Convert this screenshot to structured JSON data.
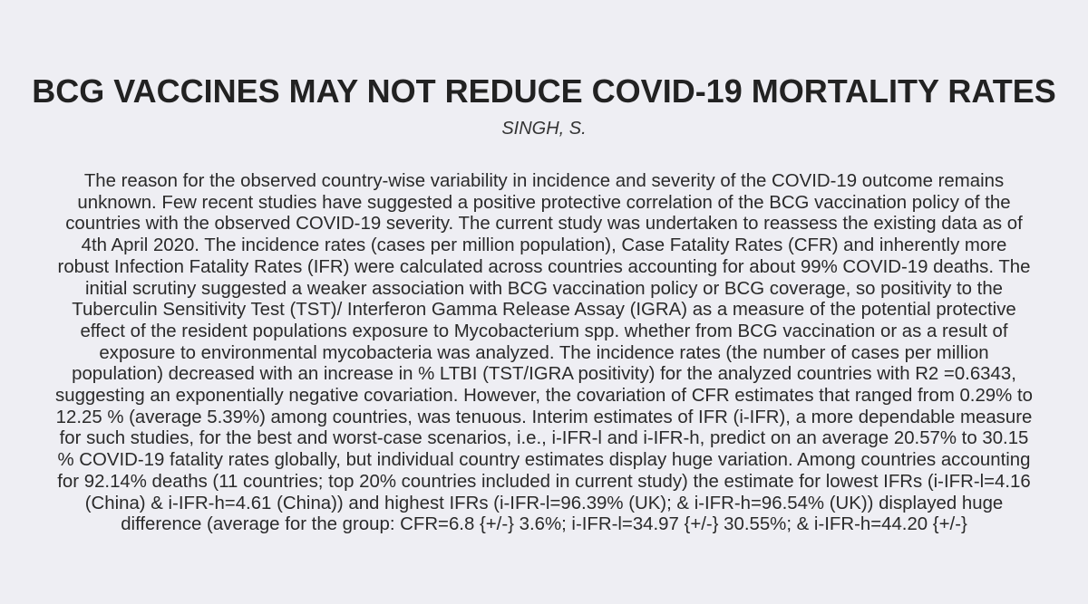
{
  "paper": {
    "title": "BCG VACCINES MAY NOT REDUCE COVID-19 MORTALITY RATES",
    "author": "SINGH, S.",
    "abstract": "The reason for the observed country-wise variability in incidence and severity of the COVID-19 outcome remains unknown. Few recent studies have suggested a positive protective correlation of the BCG vaccination policy of the countries with the observed COVID-19 severity. The current study was undertaken to reassess the existing data as of 4th April 2020. The incidence rates (cases per million population), Case Fatality Rates (CFR) and inherently more robust Infection Fatality Rates (IFR) were calculated across countries accounting for about 99% COVID-19 deaths. The initial scrutiny suggested a weaker association with BCG vaccination policy or BCG coverage, so positivity to the Tuberculin Sensitivity Test (TST)/ Interferon Gamma Release Assay (IGRA) as a measure of the potential protective effect of the resident populations exposure to Mycobacterium spp. whether from BCG vaccination or as a result of exposure to environmental mycobacteria was analyzed. The incidence rates (the number of cases per million population) decreased with an increase in % LTBI (TST/IGRA positivity) for the analyzed countries with R2 =0.6343, suggesting an exponentially negative covariation. However, the covariation of CFR estimates that ranged from 0.29% to 12.25 % (average 5.39%) among countries, was tenuous. Interim estimates of IFR (i-IFR), a more dependable measure for such studies, for the best and worst-case scenarios, i.e., i-IFR-l and i-IFR-h, predict on an average 20.57% to 30.15 % COVID-19 fatality rates globally, but individual country estimates display huge variation. Among countries accounting for 92.14% deaths (11 countries; top 20% countries included in current study) the estimate for lowest IFRs (i-IFR-l=4.16 (China) & i-IFR-h=4.61 (China)) and highest IFRs (i-IFR-l=96.39% (UK); & i-IFR-h=96.54% (UK)) displayed huge difference (average for the group: CFR=6.8 {+/-} 3.6%; i-IFR-l=34.97 {+/-} 30.55%; & i-IFR-h=44.20 {+/-}"
  }
}
